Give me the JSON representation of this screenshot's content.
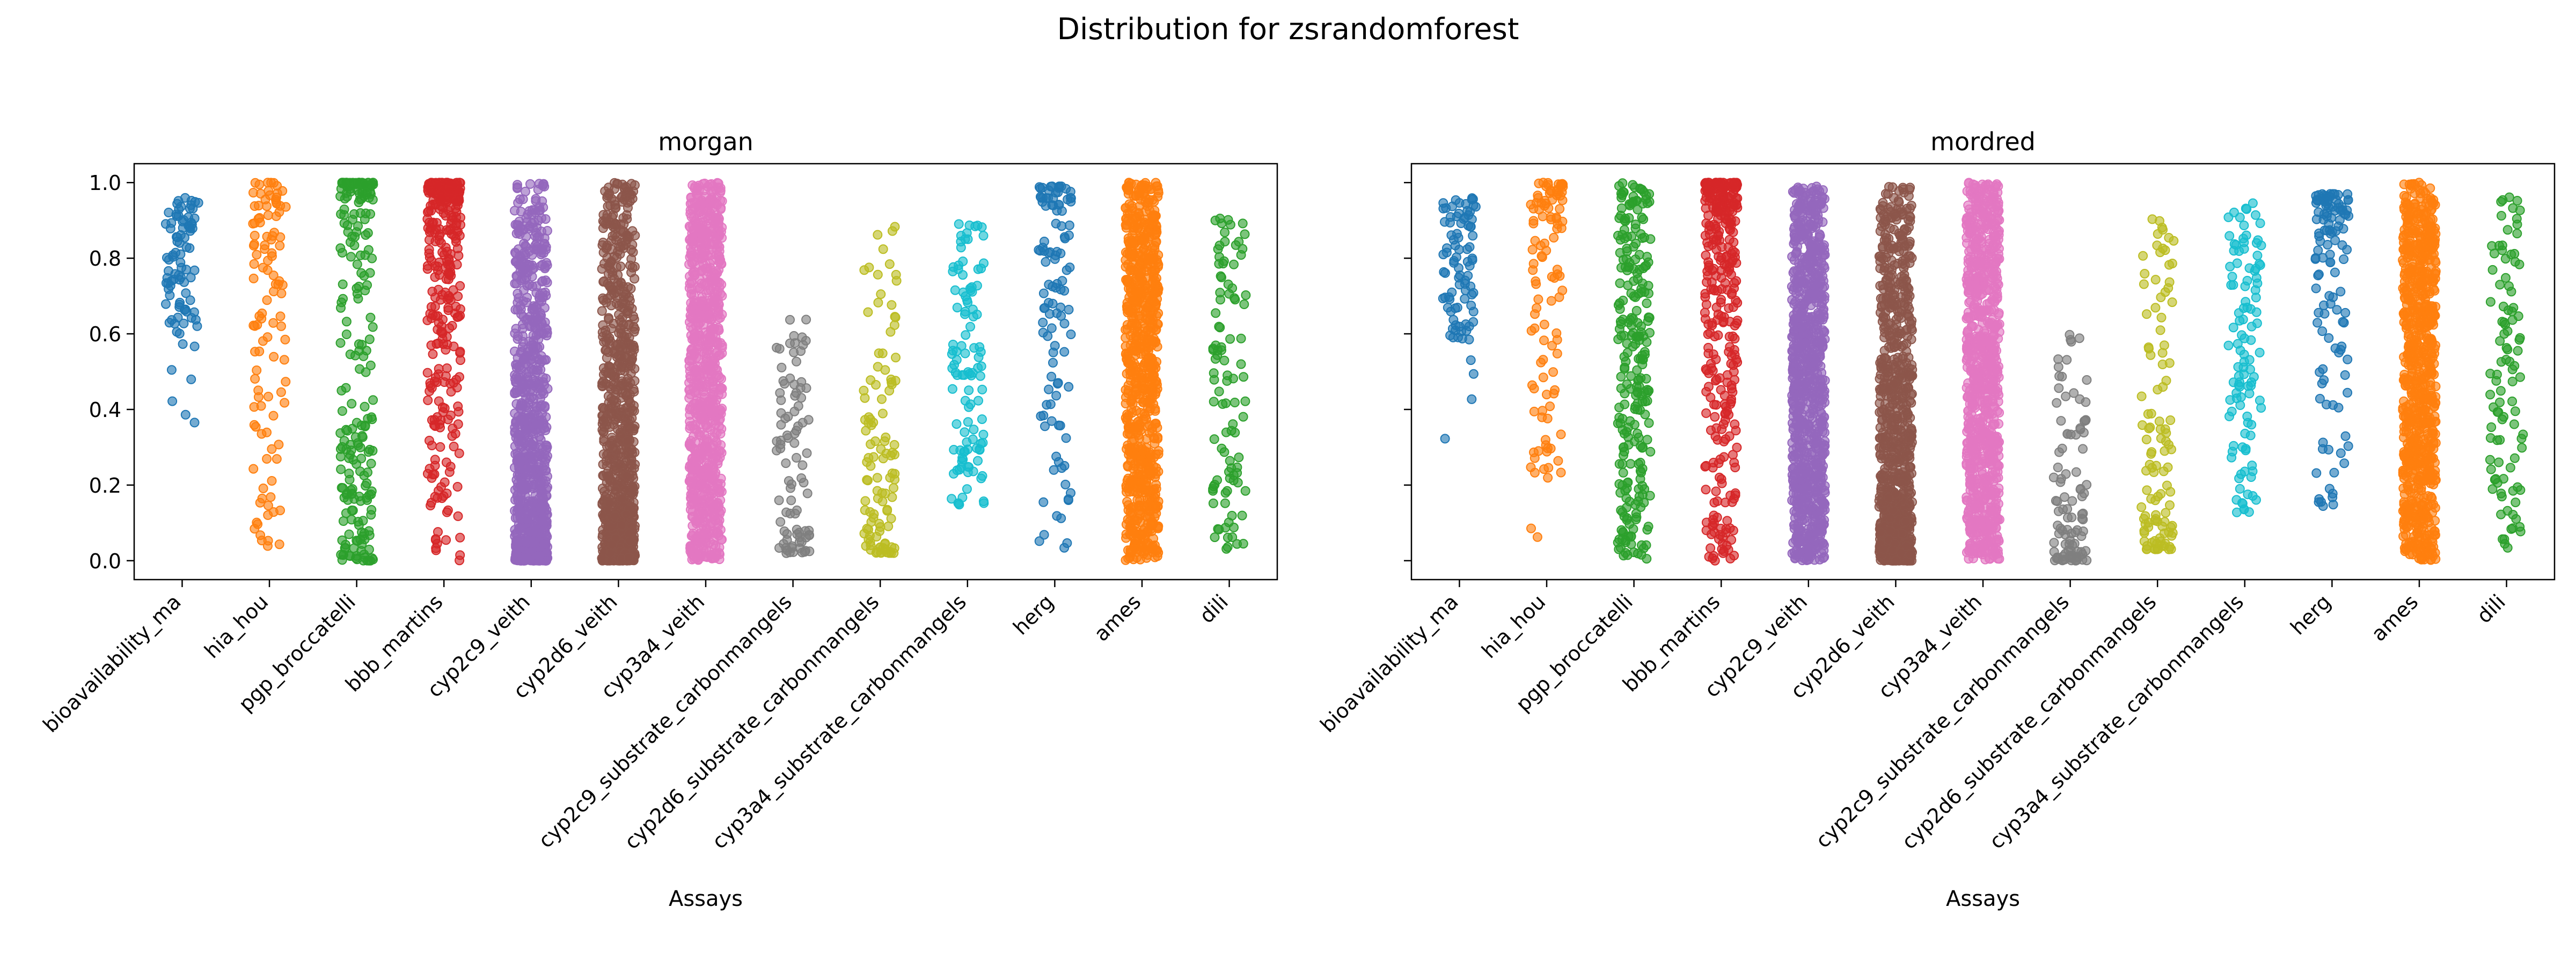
{
  "figure": {
    "title": "Distribution for zsrandomforest"
  },
  "chart_data": [
    {
      "type": "scatter",
      "title": "morgan",
      "xlabel": "Assays",
      "ylabel": "",
      "ylim": [
        -0.05,
        1.05
      ],
      "yticks": [
        "0.0",
        "0.2",
        "0.4",
        "0.6",
        "0.8",
        "1.0"
      ],
      "grid": false,
      "categories": [
        "bioavailability_ma",
        "hia_hou",
        "pgp_broccatelli",
        "bbb_martins",
        "cyp2c9_veith",
        "cyp2d6_veith",
        "cyp3a4_veith",
        "cyp2c9_substrate_carbonmangels",
        "cyp2d6_substrate_carbonmangels",
        "cyp3a4_substrate_carbonmangels",
        "herg",
        "ames",
        "dili"
      ],
      "series": [
        {
          "category": "bioavailability_ma",
          "color": "#1f77b4",
          "min": 0.3,
          "max": 0.96,
          "n": 90,
          "profile": "high-mid"
        },
        {
          "category": "hia_hou",
          "color": "#ff7f0e",
          "min": 0.03,
          "max": 1.0,
          "n": 110,
          "profile": "high"
        },
        {
          "category": "pgp_broccatelli",
          "color": "#2ca02c",
          "min": 0.0,
          "max": 1.0,
          "n": 230,
          "profile": "bimodal"
        },
        {
          "category": "bbb_martins",
          "color": "#d62728",
          "min": 0.0,
          "max": 1.0,
          "n": 320,
          "profile": "high"
        },
        {
          "category": "cyp2c9_veith",
          "color": "#9467bd",
          "min": 0.0,
          "max": 1.0,
          "n": 900,
          "profile": "low"
        },
        {
          "category": "cyp2d6_veith",
          "color": "#8c564b",
          "min": 0.0,
          "max": 1.0,
          "n": 900,
          "profile": "low"
        },
        {
          "category": "cyp3a4_veith",
          "color": "#e377c2",
          "min": 0.0,
          "max": 1.0,
          "n": 900,
          "profile": "uniform"
        },
        {
          "category": "cyp2c9_substrate_carbonmangels",
          "color": "#7f7f7f",
          "min": 0.02,
          "max": 0.64,
          "n": 90,
          "profile": "low"
        },
        {
          "category": "cyp2d6_substrate_carbonmangels",
          "color": "#bcbd22",
          "min": 0.02,
          "max": 0.91,
          "n": 110,
          "profile": "low"
        },
        {
          "category": "cyp3a4_substrate_carbonmangels",
          "color": "#17becf",
          "min": 0.14,
          "max": 0.9,
          "n": 110,
          "profile": "uniform"
        },
        {
          "category": "herg",
          "color": "#1f77b4",
          "min": 0.03,
          "max": 0.99,
          "n": 110,
          "profile": "high"
        },
        {
          "category": "ames",
          "color": "#ff7f0e",
          "min": 0.0,
          "max": 1.0,
          "n": 800,
          "profile": "uniform"
        },
        {
          "category": "dili",
          "color": "#2ca02c",
          "min": 0.03,
          "max": 0.92,
          "n": 100,
          "profile": "uniform"
        }
      ]
    },
    {
      "type": "scatter",
      "title": "mordred",
      "xlabel": "Assays",
      "ylabel": "",
      "ylim": [
        -0.05,
        1.05
      ],
      "yticks": [
        "0.0",
        "0.2",
        "0.4",
        "0.6",
        "0.8",
        "1.0"
      ],
      "grid": false,
      "shared_y": true,
      "categories": [
        "bioavailability_ma",
        "hia_hou",
        "pgp_broccatelli",
        "bbb_martins",
        "cyp2c9_veith",
        "cyp2d6_veith",
        "cyp3a4_veith",
        "cyp2c9_substrate_carbonmangels",
        "cyp2d6_substrate_carbonmangels",
        "cyp3a4_substrate_carbonmangels",
        "herg",
        "ames",
        "dili"
      ],
      "series": [
        {
          "category": "bioavailability_ma",
          "color": "#1f77b4",
          "min": 0.24,
          "max": 0.96,
          "n": 90,
          "profile": "high-mid"
        },
        {
          "category": "hia_hou",
          "color": "#ff7f0e",
          "min": 0.04,
          "max": 1.0,
          "n": 110,
          "profile": "high"
        },
        {
          "category": "pgp_broccatelli",
          "color": "#2ca02c",
          "min": 0.0,
          "max": 1.0,
          "n": 260,
          "profile": "uniform"
        },
        {
          "category": "bbb_martins",
          "color": "#d62728",
          "min": 0.0,
          "max": 1.0,
          "n": 350,
          "profile": "high"
        },
        {
          "category": "cyp2c9_veith",
          "color": "#9467bd",
          "min": 0.0,
          "max": 0.99,
          "n": 900,
          "profile": "uniform"
        },
        {
          "category": "cyp2d6_veith",
          "color": "#8c564b",
          "min": 0.0,
          "max": 0.99,
          "n": 900,
          "profile": "low"
        },
        {
          "category": "cyp3a4_veith",
          "color": "#e377c2",
          "min": 0.0,
          "max": 1.0,
          "n": 900,
          "profile": "uniform"
        },
        {
          "category": "cyp2c9_substrate_carbonmangels",
          "color": "#7f7f7f",
          "min": 0.0,
          "max": 0.62,
          "n": 100,
          "profile": "low"
        },
        {
          "category": "cyp2d6_substrate_carbonmangels",
          "color": "#bcbd22",
          "min": 0.03,
          "max": 0.91,
          "n": 110,
          "profile": "low"
        },
        {
          "category": "cyp3a4_substrate_carbonmangels",
          "color": "#17becf",
          "min": 0.12,
          "max": 0.95,
          "n": 110,
          "profile": "uniform"
        },
        {
          "category": "herg",
          "color": "#1f77b4",
          "min": 0.05,
          "max": 0.97,
          "n": 120,
          "profile": "high"
        },
        {
          "category": "ames",
          "color": "#ff7f0e",
          "min": 0.0,
          "max": 1.0,
          "n": 800,
          "profile": "uniform"
        },
        {
          "category": "dili",
          "color": "#2ca02c",
          "min": 0.03,
          "max": 0.97,
          "n": 100,
          "profile": "uniform"
        }
      ]
    }
  ]
}
